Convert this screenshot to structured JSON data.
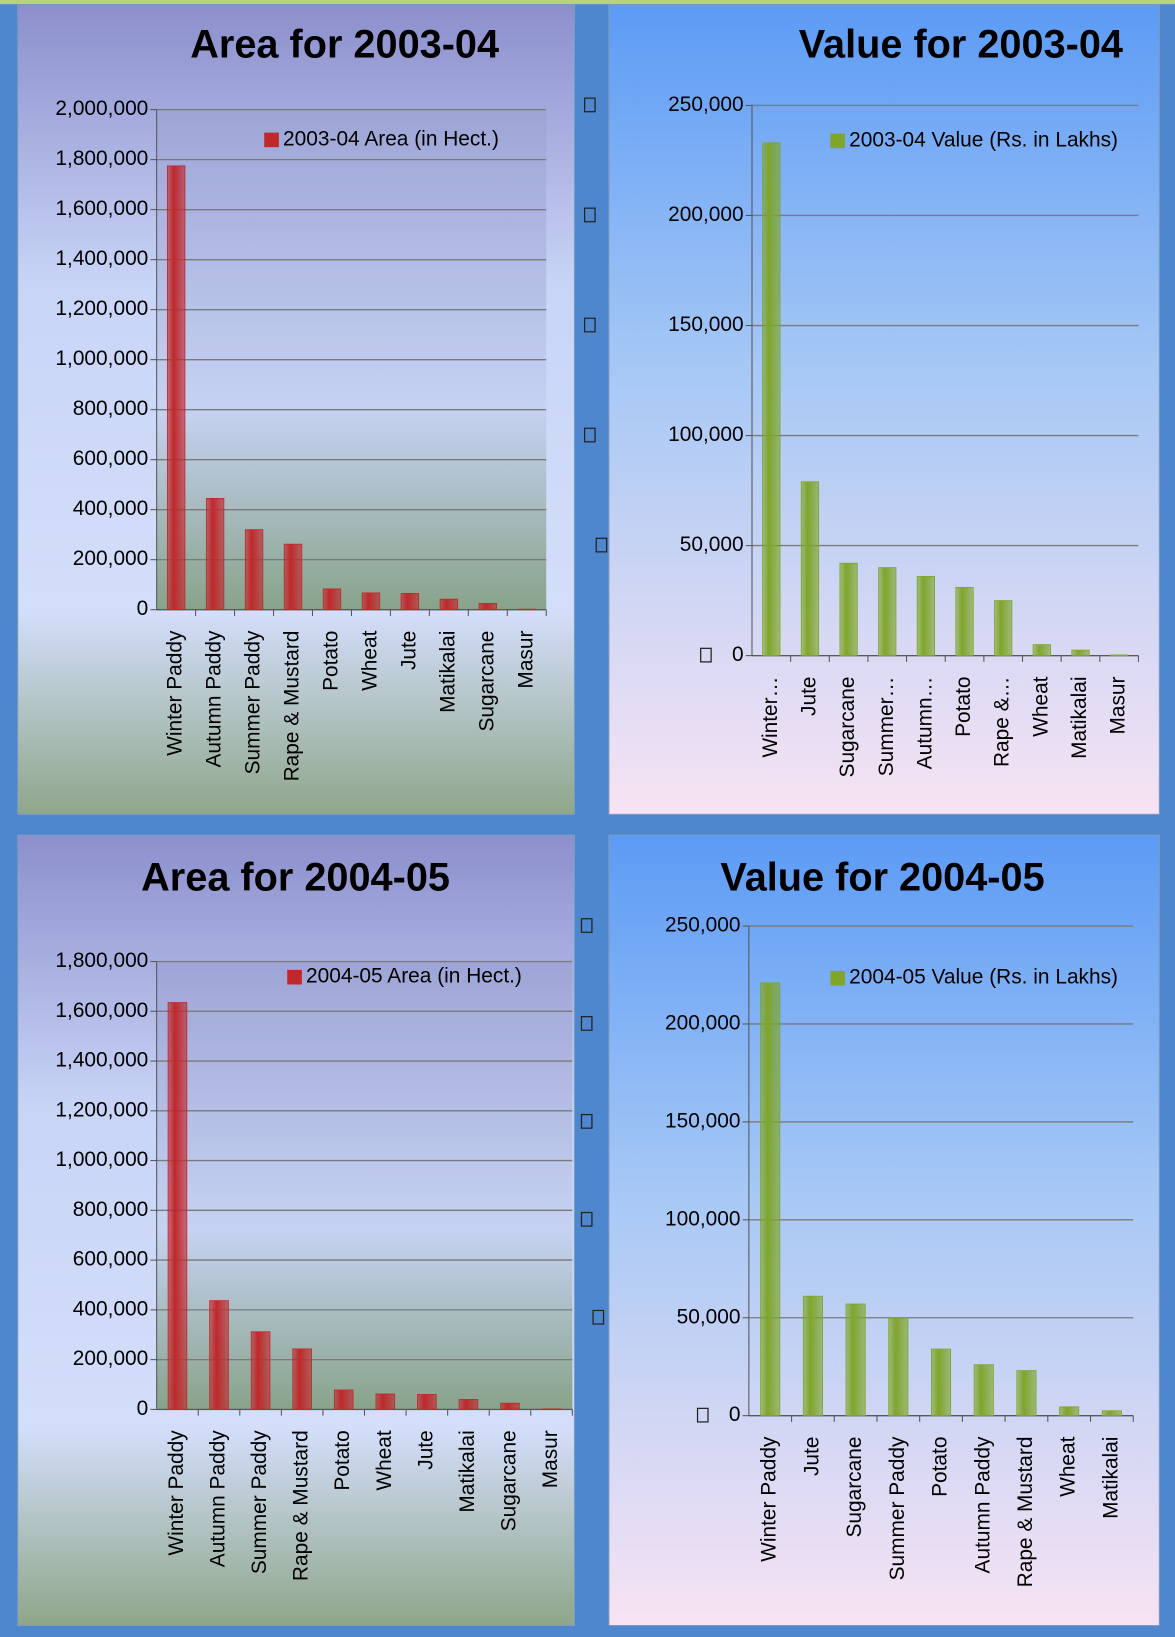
{
  "chart_data": [
    {
      "type": "bar",
      "title": "Area for 2003-04",
      "categories": [
        "Winter Paddy",
        "Autumn Paddy",
        "Summer Paddy",
        "Rape & Mustard",
        "Potato",
        "Wheat",
        "Jute",
        "Matikalai",
        "Sugarcane",
        "Masur"
      ],
      "series": [
        {
          "name": "2003-04 Area (in Hect.)",
          "color": "#c0282c",
          "values": [
            1775000,
            445000,
            320000,
            262000,
            83000,
            67000,
            65000,
            42000,
            25000,
            2000
          ]
        }
      ],
      "ylim": [
        0,
        2000000
      ],
      "yticks": [
        0,
        {
          "value": 200000,
          "label": "200,000"
        },
        {
          "value": 400000,
          "label": "400,000"
        },
        {
          "value": 600000,
          "label": "600,000"
        },
        {
          "value": 800000,
          "label": "800,000"
        },
        {
          "value": 1000000,
          "label": "1,000,000"
        },
        {
          "value": 1200000,
          "label": "1,200,000"
        },
        {
          "value": 1400000,
          "label": "1,400,000"
        },
        {
          "value": 1600000,
          "label": "1,600,000"
        },
        {
          "value": 1800000,
          "label": "1,800,000"
        },
        {
          "value": 2000000,
          "label": "2,000,000"
        }
      ],
      "grid": true,
      "legend": "top-right"
    },
    {
      "type": "bar",
      "title": "Value for 2003-04",
      "categories": [
        "Winter…",
        "Jute",
        "Sugarcane",
        "Summer…",
        "Autumn…",
        "Potato",
        "Rape &…",
        "Wheat",
        "Matikalai",
        "Masur"
      ],
      "series": [
        {
          "name": "2003-04 Value (Rs. in Lakhs)",
          "color": "#7fa52a",
          "values": [
            233000,
            79000,
            42000,
            40000,
            36000,
            31000,
            25000,
            5000,
            2500,
            300
          ]
        }
      ],
      "ylim": [
        0,
        250000
      ],
      "yticks": [
        0,
        {
          "value": 50000,
          "label": "50,000"
        },
        {
          "value": 100000,
          "label": "100,000"
        },
        {
          "value": 150000,
          "label": "150,000"
        },
        {
          "value": 200000,
          "label": "200,000"
        },
        {
          "value": 250000,
          "label": "250,000"
        }
      ],
      "grid": true,
      "legend": "top-right"
    },
    {
      "type": "bar",
      "title": "Area for 2004-05",
      "categories": [
        "Winter Paddy",
        "Autumn Paddy",
        "Summer Paddy",
        "Rape & Mustard",
        "Potato",
        "Wheat",
        "Jute",
        "Matikalai",
        "Sugarcane",
        "Masur"
      ],
      "series": [
        {
          "name": "2004-05 Area (in Hect.)",
          "color": "#c0282c",
          "values": [
            1635000,
            437000,
            312000,
            243000,
            78000,
            62000,
            60000,
            40000,
            25000,
            2000
          ]
        }
      ],
      "ylim": [
        0,
        1800000
      ],
      "yticks": [
        0,
        {
          "value": 200000,
          "label": "200,000"
        },
        {
          "value": 400000,
          "label": "400,000"
        },
        {
          "value": 600000,
          "label": "600,000"
        },
        {
          "value": 800000,
          "label": "800,000"
        },
        {
          "value": 1000000,
          "label": "1,000,000"
        },
        {
          "value": 1200000,
          "label": "1,200,000"
        },
        {
          "value": 1400000,
          "label": "1,400,000"
        },
        {
          "value": 1600000,
          "label": "1,600,000"
        },
        {
          "value": 1800000,
          "label": "1,800,000"
        }
      ],
      "grid": true,
      "legend": "top-right"
    },
    {
      "type": "bar",
      "title": "Value for 2004-05",
      "categories": [
        "Winter Paddy",
        "Jute",
        "Sugarcane",
        "Summer Paddy",
        "Potato",
        "Autumn Paddy",
        "Rape & Mustard",
        "Wheat",
        "Matikalai"
      ],
      "series": [
        {
          "name": "2004-05 Value (Rs. in Lakhs)",
          "color": "#7fa52a",
          "values": [
            221000,
            61000,
            57000,
            50000,
            34000,
            26000,
            23000,
            4500,
            2500
          ]
        }
      ],
      "ylim": [
        0,
        250000
      ],
      "yticks": [
        0,
        {
          "value": 50000,
          "label": "50,000"
        },
        {
          "value": 100000,
          "label": "100,000"
        },
        {
          "value": 150000,
          "label": "150,000"
        },
        {
          "value": 200000,
          "label": "200,000"
        },
        {
          "value": 250000,
          "label": "250,000"
        }
      ],
      "grid": true,
      "legend": "top-right"
    }
  ]
}
